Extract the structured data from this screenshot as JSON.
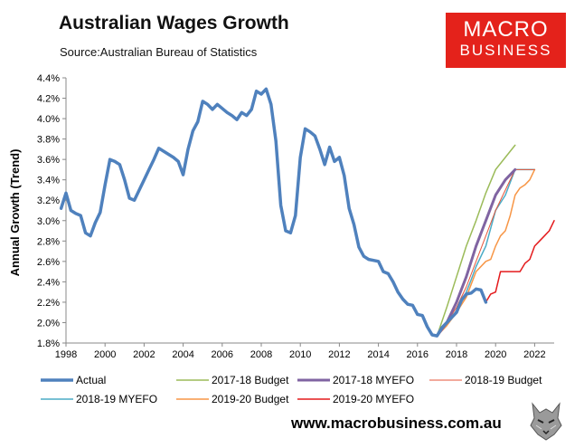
{
  "header": {
    "title": "Australian Wages Growth",
    "source": "Source:Australian Bureau of Statistics"
  },
  "logo": {
    "line1": "MACRO",
    "line2": "BUSINESS",
    "color": "#e4221b"
  },
  "footer": {
    "url": "www.macrobusiness.com.au"
  },
  "chart_data": {
    "type": "line",
    "title": "Australian Wages Growth",
    "ylabel": "Annual Growth (Trend)",
    "xlabel": "",
    "xlim": [
      1998,
      2023
    ],
    "ylim": [
      1.8,
      4.4
    ],
    "x_ticks": [
      "1998",
      "2000",
      "2002",
      "2004",
      "2006",
      "2008",
      "2010",
      "2012",
      "2014",
      "2016",
      "2018",
      "2020",
      "2022"
    ],
    "y_ticks": [
      "1.8%",
      "2.0%",
      "2.2%",
      "2.4%",
      "2.6%",
      "2.8%",
      "3.0%",
      "3.2%",
      "3.4%",
      "3.6%",
      "3.8%",
      "4.0%",
      "4.2%",
      "4.4%"
    ],
    "legend_position": "bottom",
    "grid": false,
    "series": [
      {
        "name": "Actual",
        "color": "#4f81bd",
        "width": 3.5,
        "points": [
          [
            1997.75,
            3.12
          ],
          [
            1998.0,
            3.27
          ],
          [
            1998.25,
            3.1
          ],
          [
            1998.5,
            3.07
          ],
          [
            1998.75,
            3.05
          ],
          [
            1999.0,
            2.88
          ],
          [
            1999.25,
            2.85
          ],
          [
            1999.5,
            2.98
          ],
          [
            1999.75,
            3.08
          ],
          [
            2000.0,
            3.35
          ],
          [
            2000.25,
            3.6
          ],
          [
            2000.5,
            3.58
          ],
          [
            2000.75,
            3.55
          ],
          [
            2001.0,
            3.4
          ],
          [
            2001.25,
            3.22
          ],
          [
            2001.5,
            3.2
          ],
          [
            2001.75,
            3.3
          ],
          [
            2002.0,
            3.4
          ],
          [
            2002.25,
            3.5
          ],
          [
            2002.5,
            3.6
          ],
          [
            2002.75,
            3.71
          ],
          [
            2003.0,
            3.68
          ],
          [
            2003.25,
            3.65
          ],
          [
            2003.5,
            3.62
          ],
          [
            2003.75,
            3.58
          ],
          [
            2004.0,
            3.45
          ],
          [
            2004.25,
            3.7
          ],
          [
            2004.5,
            3.88
          ],
          [
            2004.75,
            3.97
          ],
          [
            2005.0,
            4.17
          ],
          [
            2005.25,
            4.14
          ],
          [
            2005.5,
            4.09
          ],
          [
            2005.75,
            4.14
          ],
          [
            2006.0,
            4.1
          ],
          [
            2006.25,
            4.06
          ],
          [
            2006.5,
            4.03
          ],
          [
            2006.75,
            3.99
          ],
          [
            2007.0,
            4.06
          ],
          [
            2007.25,
            4.03
          ],
          [
            2007.5,
            4.09
          ],
          [
            2007.75,
            4.27
          ],
          [
            2008.0,
            4.24
          ],
          [
            2008.25,
            4.29
          ],
          [
            2008.5,
            4.14
          ],
          [
            2008.75,
            3.78
          ],
          [
            2009.0,
            3.15
          ],
          [
            2009.25,
            2.9
          ],
          [
            2009.5,
            2.88
          ],
          [
            2009.75,
            3.05
          ],
          [
            2010.0,
            3.62
          ],
          [
            2010.25,
            3.9
          ],
          [
            2010.5,
            3.87
          ],
          [
            2010.75,
            3.83
          ],
          [
            2011.0,
            3.7
          ],
          [
            2011.25,
            3.55
          ],
          [
            2011.5,
            3.72
          ],
          [
            2011.75,
            3.58
          ],
          [
            2012.0,
            3.62
          ],
          [
            2012.25,
            3.44
          ],
          [
            2012.5,
            3.12
          ],
          [
            2012.75,
            2.96
          ],
          [
            2013.0,
            2.74
          ],
          [
            2013.25,
            2.65
          ],
          [
            2013.5,
            2.62
          ],
          [
            2013.75,
            2.61
          ],
          [
            2014.0,
            2.6
          ],
          [
            2014.25,
            2.5
          ],
          [
            2014.5,
            2.48
          ],
          [
            2014.75,
            2.4
          ],
          [
            2015.0,
            2.3
          ],
          [
            2015.25,
            2.23
          ],
          [
            2015.5,
            2.18
          ],
          [
            2015.75,
            2.17
          ],
          [
            2016.0,
            2.08
          ],
          [
            2016.25,
            2.07
          ],
          [
            2016.5,
            1.96
          ],
          [
            2016.75,
            1.88
          ],
          [
            2017.0,
            1.87
          ],
          [
            2017.25,
            1.95
          ],
          [
            2017.5,
            2.0
          ],
          [
            2017.75,
            2.05
          ],
          [
            2018.0,
            2.1
          ],
          [
            2018.25,
            2.22
          ],
          [
            2018.5,
            2.28
          ],
          [
            2018.75,
            2.29
          ],
          [
            2019.0,
            2.33
          ],
          [
            2019.25,
            2.32
          ],
          [
            2019.5,
            2.2
          ]
        ]
      },
      {
        "name": "2017-18 Budget",
        "color": "#9bbb59",
        "width": 1.5,
        "points": [
          [
            2017.0,
            1.87
          ],
          [
            2017.5,
            2.15
          ],
          [
            2018.0,
            2.45
          ],
          [
            2018.5,
            2.75
          ],
          [
            2019.0,
            3.0
          ],
          [
            2019.5,
            3.27
          ],
          [
            2020.0,
            3.5
          ],
          [
            2020.5,
            3.62
          ],
          [
            2021.0,
            3.74
          ]
        ]
      },
      {
        "name": "2017-18 MYEFO",
        "color": "#8064a2",
        "width": 3,
        "points": [
          [
            2017.0,
            1.87
          ],
          [
            2017.5,
            2.0
          ],
          [
            2018.0,
            2.2
          ],
          [
            2018.5,
            2.45
          ],
          [
            2019.0,
            2.75
          ],
          [
            2019.5,
            3.0
          ],
          [
            2020.0,
            3.25
          ],
          [
            2020.5,
            3.4
          ],
          [
            2021.0,
            3.5
          ]
        ]
      },
      {
        "name": "2018-19 Budget",
        "color": "#e6553a",
        "width": 1,
        "points": [
          [
            2017.0,
            1.87
          ],
          [
            2017.5,
            2.0
          ],
          [
            2018.0,
            2.15
          ],
          [
            2018.5,
            2.35
          ],
          [
            2019.0,
            2.6
          ],
          [
            2019.5,
            2.85
          ],
          [
            2020.0,
            3.1
          ],
          [
            2020.5,
            3.3
          ],
          [
            2021.0,
            3.5
          ],
          [
            2021.5,
            3.5
          ],
          [
            2022.0,
            3.5
          ]
        ]
      },
      {
        "name": "2018-19 MYEFO",
        "color": "#4bacc6",
        "width": 1.5,
        "points": [
          [
            2017.0,
            1.87
          ],
          [
            2017.5,
            1.98
          ],
          [
            2018.0,
            2.12
          ],
          [
            2018.25,
            2.2
          ],
          [
            2018.5,
            2.3
          ],
          [
            2018.75,
            2.42
          ],
          [
            2019.0,
            2.55
          ],
          [
            2019.5,
            2.75
          ],
          [
            2020.0,
            3.1
          ],
          [
            2020.5,
            3.25
          ],
          [
            2021.0,
            3.5
          ],
          [
            2021.5,
            3.5
          ],
          [
            2022.0,
            3.5
          ]
        ]
      },
      {
        "name": "2019-20 Budget",
        "color": "#f79646",
        "width": 1.5,
        "points": [
          [
            2017.0,
            1.87
          ],
          [
            2017.5,
            1.97
          ],
          [
            2018.0,
            2.1
          ],
          [
            2018.5,
            2.25
          ],
          [
            2019.0,
            2.5
          ],
          [
            2019.5,
            2.6
          ],
          [
            2019.75,
            2.62
          ],
          [
            2020.0,
            2.75
          ],
          [
            2020.25,
            2.85
          ],
          [
            2020.5,
            2.9
          ],
          [
            2020.75,
            3.05
          ],
          [
            2021.0,
            3.25
          ],
          [
            2021.25,
            3.32
          ],
          [
            2021.5,
            3.35
          ],
          [
            2021.75,
            3.4
          ],
          [
            2022.0,
            3.5
          ]
        ]
      },
      {
        "name": "2019-20 MYEFO",
        "color": "#e41a1c",
        "width": 1.5,
        "points": [
          [
            2019.5,
            2.2
          ],
          [
            2019.75,
            2.28
          ],
          [
            2020.0,
            2.3
          ],
          [
            2020.25,
            2.5
          ],
          [
            2020.5,
            2.5
          ],
          [
            2020.75,
            2.5
          ],
          [
            2021.0,
            2.5
          ],
          [
            2021.25,
            2.5
          ],
          [
            2021.5,
            2.58
          ],
          [
            2021.75,
            2.62
          ],
          [
            2022.0,
            2.75
          ],
          [
            2022.25,
            2.8
          ],
          [
            2022.5,
            2.85
          ],
          [
            2022.75,
            2.9
          ],
          [
            2023.0,
            3.0
          ]
        ]
      }
    ]
  }
}
